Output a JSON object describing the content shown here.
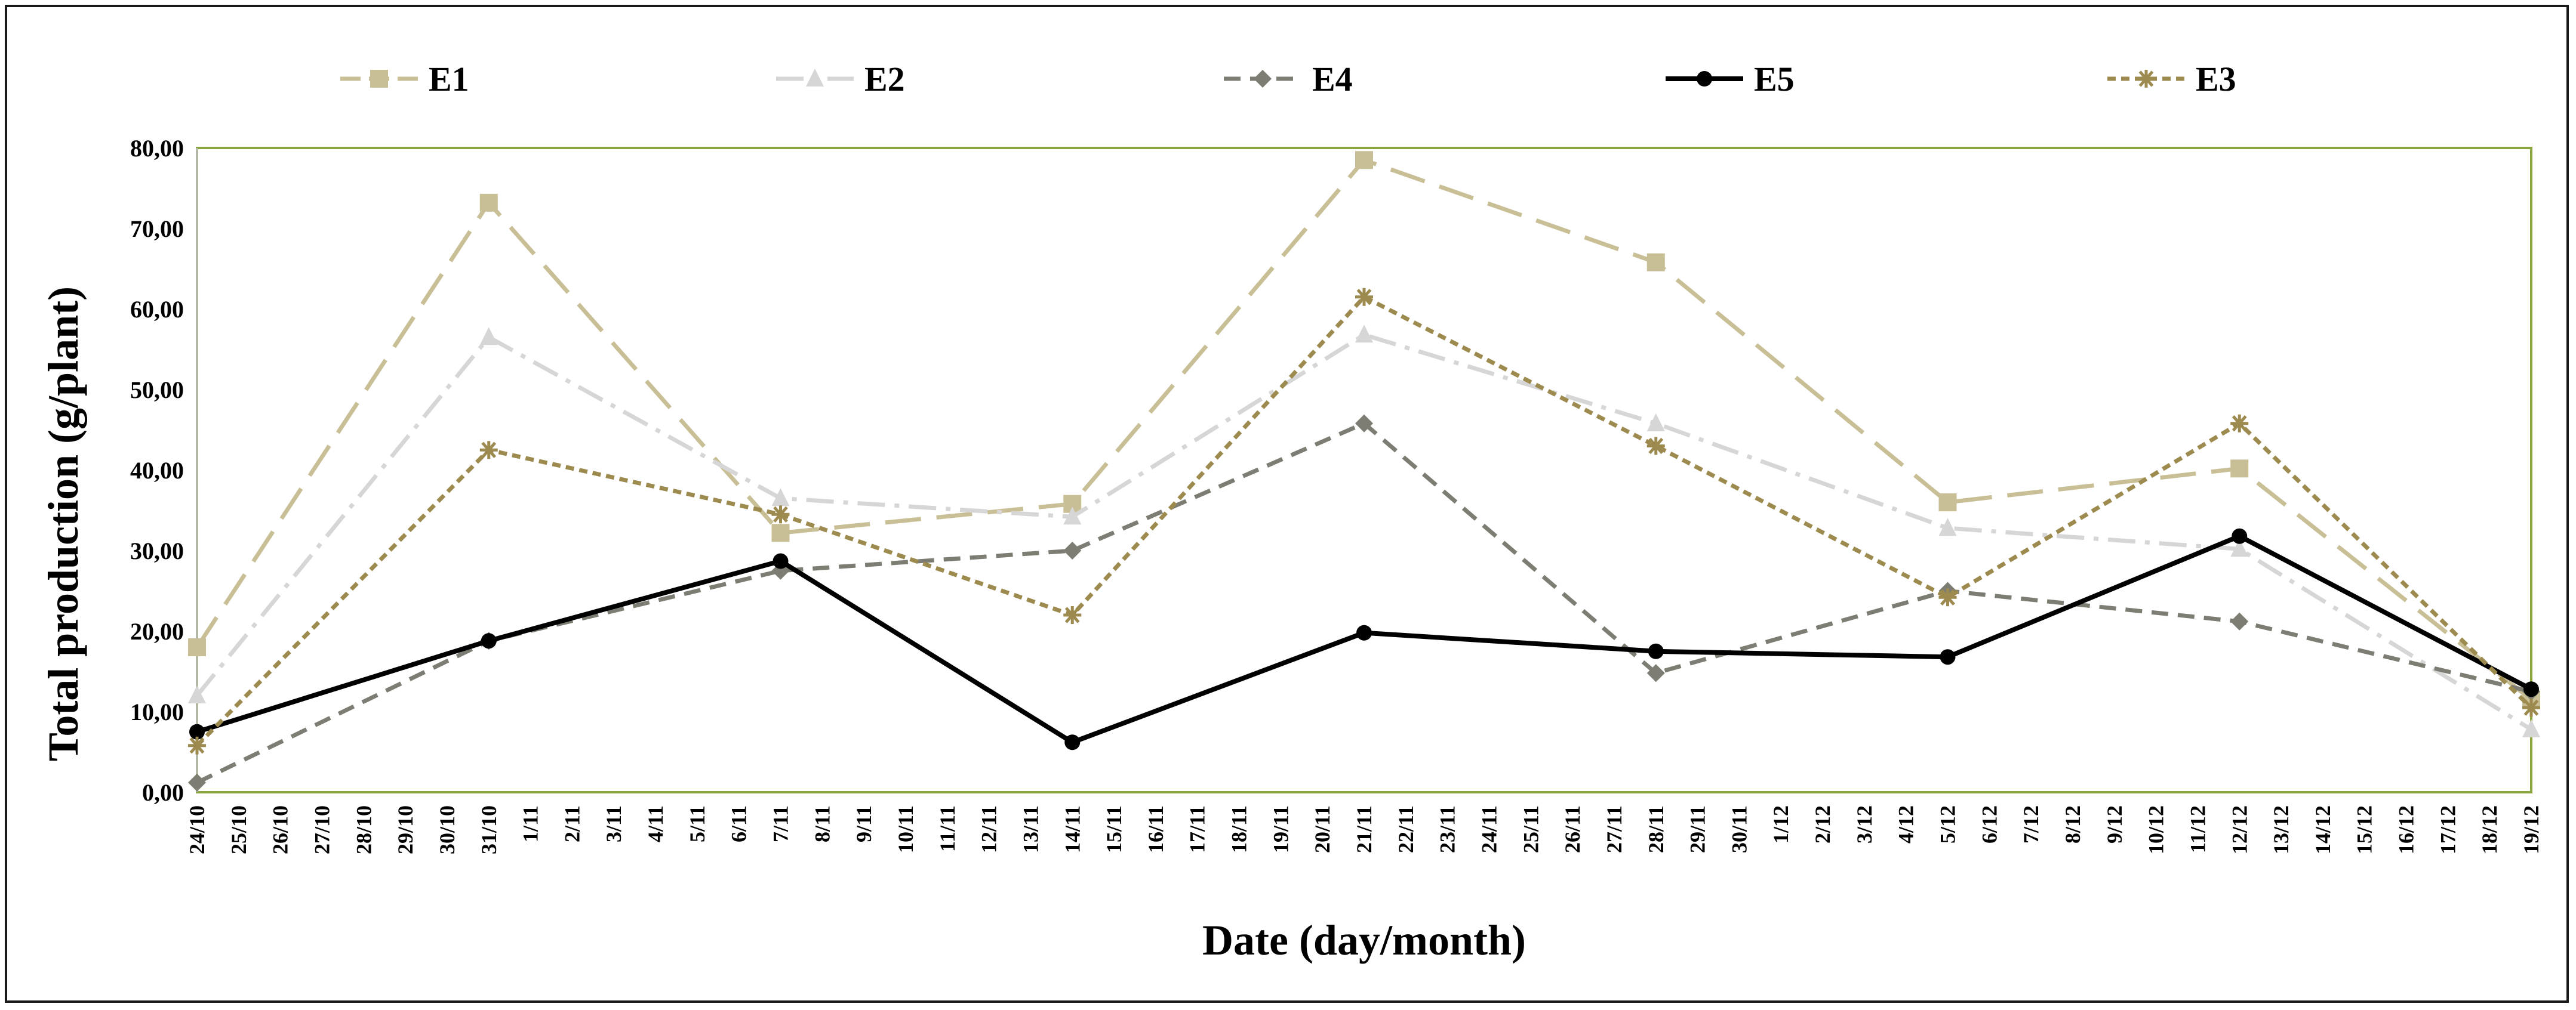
{
  "chart_data": {
    "type": "line",
    "xlabel": "Date (day/month)",
    "ylabel": "Total production (g/plant)",
    "ylim": [
      0,
      80
    ],
    "yticks": [
      "0,00",
      "10,00",
      "20,00",
      "30,00",
      "40,00",
      "50,00",
      "60,00",
      "70,00",
      "80,00"
    ],
    "categories": [
      "24/10",
      "25/10",
      "26/10",
      "27/10",
      "28/10",
      "29/10",
      "30/10",
      "31/10",
      "1/11",
      "2/11",
      "3/11",
      "4/11",
      "5/11",
      "6/11",
      "7/11",
      "8/11",
      "9/11",
      "10/11",
      "11/11",
      "12/11",
      "13/11",
      "14/11",
      "15/11",
      "16/11",
      "17/11",
      "18/11",
      "19/11",
      "20/11",
      "21/11",
      "22/11",
      "23/11",
      "24/11",
      "25/11",
      "26/11",
      "27/11",
      "28/11",
      "29/11",
      "30/11",
      "1/12",
      "2/12",
      "3/12",
      "4/12",
      "5/12",
      "6/12",
      "7/12",
      "8/12",
      "9/12",
      "10/12",
      "11/12",
      "12/12",
      "13/12",
      "14/12",
      "15/12",
      "16/12",
      "17/12",
      "18/12",
      "19/12"
    ],
    "grid": false,
    "legend_position": "top",
    "plot_border_color": "#8aa53c",
    "series": [
      {
        "name": "E1",
        "color": "#c9bf96",
        "dash": "long-dash",
        "marker": "square",
        "x": [
          "24/10",
          "31/10",
          "7/11",
          "14/11",
          "21/11",
          "28/11",
          "5/12",
          "12/12",
          "19/12"
        ],
        "values": [
          18.0,
          73.2,
          32.2,
          35.8,
          78.5,
          65.8,
          36.0,
          40.2,
          11.5
        ]
      },
      {
        "name": "E2",
        "color": "#d6d6d6",
        "dash": "dash-dot",
        "marker": "triangle",
        "x": [
          "24/10",
          "31/10",
          "7/11",
          "14/11",
          "21/11",
          "28/11",
          "5/12",
          "12/12",
          "19/12"
        ],
        "values": [
          12.0,
          56.5,
          36.5,
          34.2,
          56.8,
          45.8,
          32.8,
          30.2,
          7.8
        ]
      },
      {
        "name": "E4",
        "color": "#7d7d74",
        "dash": "medium-dash",
        "marker": "diamond",
        "x": [
          "24/10",
          "31/10",
          "7/11",
          "14/11",
          "21/11",
          "28/11",
          "5/12",
          "12/12",
          "19/12"
        ],
        "values": [
          1.2,
          18.8,
          27.5,
          30.0,
          45.8,
          14.8,
          25.0,
          21.2,
          12.5
        ]
      },
      {
        "name": "E5",
        "color": "#000000",
        "dash": "solid",
        "marker": "circle",
        "x": [
          "24/10",
          "31/10",
          "7/11",
          "14/11",
          "21/11",
          "28/11",
          "5/12",
          "12/12",
          "19/12"
        ],
        "values": [
          7.5,
          18.8,
          28.7,
          6.2,
          19.8,
          17.5,
          16.8,
          31.8,
          12.8
        ]
      },
      {
        "name": "E3",
        "color": "#9c8a4e",
        "dash": "short-dash",
        "marker": "star",
        "x": [
          "24/10",
          "31/10",
          "7/11",
          "14/11",
          "21/11",
          "28/11",
          "5/12",
          "12/12",
          "19/12"
        ],
        "values": [
          5.8,
          42.5,
          34.5,
          22.0,
          61.5,
          43.0,
          24.2,
          45.8,
          10.5
        ]
      }
    ]
  }
}
